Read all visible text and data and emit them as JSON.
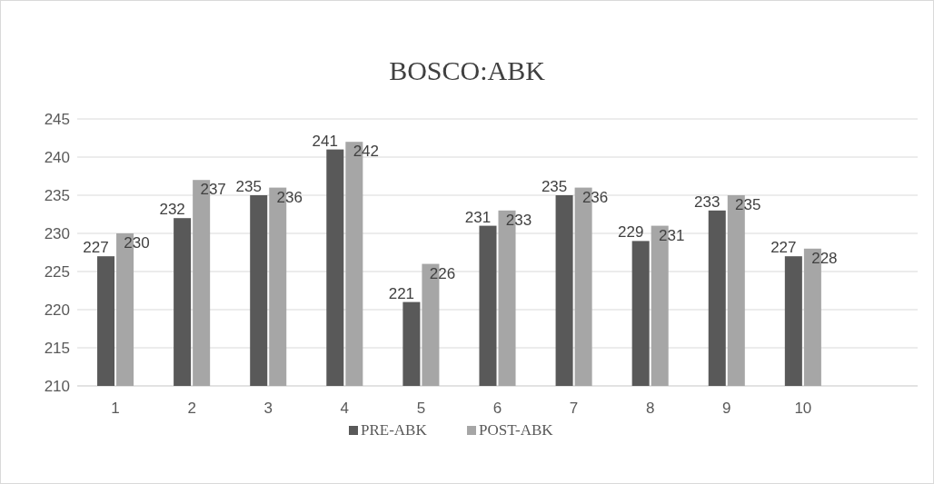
{
  "chart_data": {
    "type": "bar",
    "title": "BOSCO:ABK",
    "categories": [
      "1",
      "2",
      "3",
      "4",
      "5",
      "6",
      "7",
      "8",
      "9",
      "10",
      null
    ],
    "series": [
      {
        "name": "PRE-ABK",
        "color": "#595959",
        "values": [
          227,
          232,
          235,
          241,
          221,
          231,
          235,
          229,
          233,
          227,
          null
        ]
      },
      {
        "name": "POST-ABK",
        "color": "#a6a6a6",
        "values": [
          230,
          237,
          236,
          242,
          226,
          233,
          236,
          231,
          235,
          228,
          null
        ]
      }
    ],
    "ylim": [
      210,
      245
    ],
    "yticks": [
      210,
      215,
      220,
      225,
      230,
      235,
      240,
      245
    ],
    "grid": "y",
    "legend": "bottom",
    "data_labels": true
  }
}
